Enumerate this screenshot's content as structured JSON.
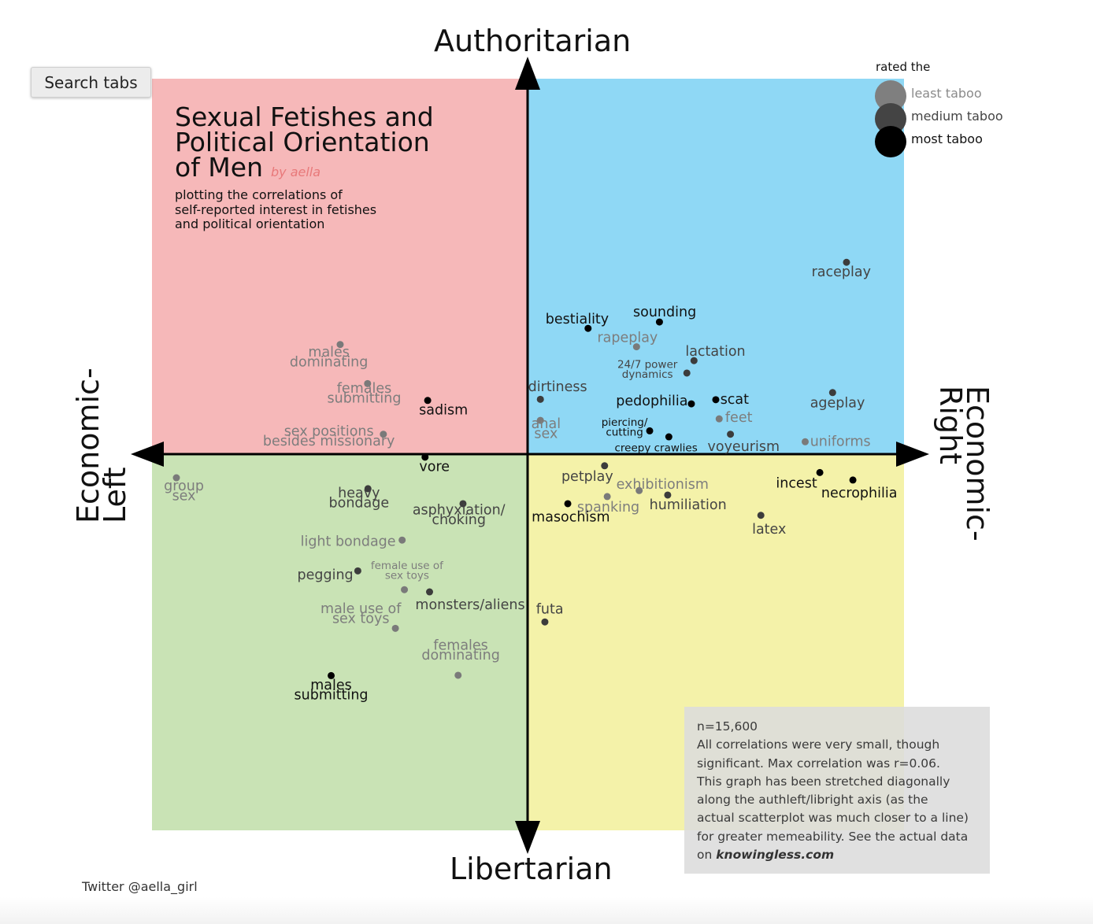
{
  "ui": {
    "search_tabs_label": "Search tabs"
  },
  "chart_data": {
    "type": "scatter",
    "title": "Sexual Fetishes and Political Orientation of Men",
    "byline": "by aella",
    "subtitle_lines": [
      "plotting the correlations of",
      "self-reported interest in fetishes",
      "and political orientation"
    ],
    "title_lines": [
      "Sexual Fetishes and",
      "Political Orientation",
      "of Men"
    ],
    "axis_labels": {
      "top": "Authoritarian",
      "bottom": "Libertarian",
      "left": [
        "Economic-",
        "Left"
      ],
      "right": [
        "Economic-",
        "Right"
      ]
    },
    "quadrant_colors": {
      "auth_left": "#f6b8b9",
      "auth_right": "#8fd8f5",
      "lib_left": "#c9e3b5",
      "lib_right": "#f4f2a9"
    },
    "legend": {
      "title": "rated the",
      "items": [
        {
          "label": "least taboo",
          "color": "#7f7f7f"
        },
        {
          "label": "medium taboo",
          "color": "#444444"
        },
        {
          "label": "most taboo",
          "color": "#000000"
        }
      ]
    },
    "xlim": [
      -1,
      1
    ],
    "ylim": [
      -1,
      1
    ],
    "points": [
      {
        "name": "raceplay",
        "x": 0.849,
        "y": 0.511,
        "taboo": "medium",
        "lines": [
          "raceplay"
        ],
        "lx": 0.835,
        "ly": 0.486,
        "anchor": "middle"
      },
      {
        "name": "sounding",
        "x": 0.351,
        "y": 0.352,
        "taboo": "most",
        "lines": [
          "sounding"
        ],
        "lx": 0.365,
        "ly": 0.379,
        "anchor": "middle"
      },
      {
        "name": "bestiality",
        "x": 0.161,
        "y": 0.335,
        "taboo": "most",
        "lines": [
          "bestiality"
        ],
        "lx": 0.132,
        "ly": 0.361,
        "anchor": "middle"
      },
      {
        "name": "rapeplay",
        "x": 0.29,
        "y": 0.286,
        "taboo": "least",
        "lines": [
          "rapeplay"
        ],
        "lx": 0.266,
        "ly": 0.311,
        "anchor": "middle"
      },
      {
        "name": "lactation",
        "x": 0.443,
        "y": 0.249,
        "taboo": "medium",
        "lines": [
          "lactation"
        ],
        "lx": 0.5,
        "ly": 0.275,
        "anchor": "middle"
      },
      {
        "name": "24/7 power dynamics",
        "x": 0.424,
        "y": 0.216,
        "taboo": "medium",
        "lines": [
          "24/7 power",
          "dynamics"
        ],
        "lx": 0.319,
        "ly": 0.229,
        "anchor": "middle",
        "small": true
      },
      {
        "name": "dirtiness",
        "x": 0.034,
        "y": 0.146,
        "taboo": "medium",
        "lines": [
          "dirtiness"
        ],
        "lx": 0.08,
        "ly": 0.18,
        "anchor": "middle"
      },
      {
        "name": "pedophilia",
        "x": 0.436,
        "y": 0.134,
        "taboo": "most",
        "lines": [
          "pedophilia"
        ],
        "lx": 0.331,
        "ly": 0.143,
        "anchor": "middle"
      },
      {
        "name": "scat",
        "x": 0.501,
        "y": 0.145,
        "taboo": "most",
        "lines": [
          "scat"
        ],
        "lx": 0.513,
        "ly": 0.147,
        "anchor": "start"
      },
      {
        "name": "ageplay",
        "x": 0.812,
        "y": 0.164,
        "taboo": "medium",
        "lines": [
          "ageplay"
        ],
        "lx": 0.825,
        "ly": 0.137,
        "anchor": "middle"
      },
      {
        "name": "feet",
        "x": 0.51,
        "y": 0.094,
        "taboo": "least",
        "lines": [
          "feet"
        ],
        "lx": 0.526,
        "ly": 0.099,
        "anchor": "start"
      },
      {
        "name": "anal sex",
        "x": 0.034,
        "y": 0.09,
        "taboo": "least",
        "lines": [
          "anal",
          "sex"
        ],
        "lx": 0.049,
        "ly": 0.069,
        "anchor": "middle"
      },
      {
        "name": "piercing/cutting",
        "x": 0.325,
        "y": 0.062,
        "taboo": "most",
        "lines": [
          "piercing/",
          "cutting"
        ],
        "lx": 0.258,
        "ly": 0.075,
        "anchor": "middle",
        "small": true
      },
      {
        "name": "creepy crawlies",
        "x": 0.376,
        "y": 0.046,
        "taboo": "most",
        "lines": [
          "creepy crawlies"
        ],
        "lx": 0.342,
        "ly": 0.02,
        "anchor": "middle",
        "small": true
      },
      {
        "name": "voyeurism",
        "x": 0.54,
        "y": 0.053,
        "taboo": "medium",
        "lines": [
          "voyeurism"
        ],
        "lx": 0.575,
        "ly": 0.021,
        "anchor": "middle"
      },
      {
        "name": "uniforms",
        "x": 0.739,
        "y": 0.033,
        "taboo": "least",
        "lines": [
          "uniforms"
        ],
        "lx": 0.752,
        "ly": 0.035,
        "anchor": "start"
      },
      {
        "name": "males dominating",
        "x": -1.0,
        "y": 0.0,
        "taboo": "least",
        "hidden": true,
        "lines": [],
        "lx": 0,
        "ly": 0,
        "anchor": "middle"
      },
      {
        "name": "males dominating",
        "x": -1.0,
        "y": 0.0,
        "taboo": "least",
        "hidden": true,
        "lines": [],
        "lx": 0,
        "ly": 0,
        "anchor": "middle"
      }
    ],
    "points_left": [
      {
        "name": "males dominating",
        "x": -0.499,
        "y": 0.292,
        "taboo": "least",
        "lines": [
          "males",
          "dominating"
        ],
        "lx": -0.529,
        "ly": 0.259,
        "anchor": "middle"
      },
      {
        "name": "females submitting",
        "x": -0.426,
        "y": 0.188,
        "taboo": "least",
        "lines": [
          "females",
          "submitting"
        ],
        "lx": -0.435,
        "ly": 0.163,
        "anchor": "middle"
      },
      {
        "name": "sadism",
        "x": -0.266,
        "y": 0.143,
        "taboo": "most",
        "lines": [
          "sadism"
        ],
        "lx": -0.224,
        "ly": 0.118,
        "anchor": "middle"
      },
      {
        "name": "sex positions besides missionary",
        "x": -0.384,
        "y": 0.053,
        "taboo": "least",
        "lines": [
          "sex positions",
          "besides missionary"
        ],
        "lx": -0.529,
        "ly": 0.049,
        "anchor": "middle"
      },
      {
        "name": "vore",
        "x": -0.273,
        "y": -0.008,
        "taboo": "most",
        "lines": [
          "vore"
        ],
        "lx": -0.248,
        "ly": -0.032,
        "anchor": "middle"
      },
      {
        "name": "group sex",
        "x": -0.935,
        "y": -0.063,
        "taboo": "least",
        "lines": [
          "group",
          "sex"
        ],
        "lx": -0.915,
        "ly": -0.097,
        "anchor": "middle"
      },
      {
        "name": "heavy bondage",
        "x": -0.425,
        "y": -0.092,
        "taboo": "medium",
        "lines": [
          "heavy",
          "bondage"
        ],
        "lx": -0.449,
        "ly": -0.116,
        "anchor": "middle"
      },
      {
        "name": "asphyxiation/choking",
        "x": -0.172,
        "y": -0.132,
        "taboo": "medium",
        "lines": [
          "asphyxiation/",
          "choking"
        ],
        "lx": -0.183,
        "ly": -0.161,
        "anchor": "middle"
      },
      {
        "name": "light bondage",
        "x": -0.334,
        "y": -0.229,
        "taboo": "least",
        "lines": [
          "light bondage"
        ],
        "lx": -0.351,
        "ly": -0.232,
        "anchor": "end"
      },
      {
        "name": "pegging",
        "x": -0.452,
        "y": -0.311,
        "taboo": "medium",
        "lines": [
          "pegging"
        ],
        "lx": -0.464,
        "ly": -0.321,
        "anchor": "end"
      },
      {
        "name": "female use of sex toys",
        "x": -0.328,
        "y": -0.361,
        "taboo": "least",
        "lines": [
          "female use of",
          "sex toys"
        ],
        "lx": -0.321,
        "ly": -0.307,
        "anchor": "middle",
        "small": true
      },
      {
        "name": "monsters/aliens",
        "x": -0.261,
        "y": -0.367,
        "taboo": "medium",
        "lines": [
          "monsters/aliens"
        ],
        "lx": -0.153,
        "ly": -0.4,
        "anchor": "middle"
      },
      {
        "name": "male use of sex toys",
        "x": -0.352,
        "y": -0.464,
        "taboo": "least",
        "lines": [
          "male use of",
          "sex toys"
        ],
        "lx": -0.444,
        "ly": -0.424,
        "anchor": "middle"
      },
      {
        "name": "futa",
        "x": 0.046,
        "y": -0.447,
        "taboo": "medium",
        "lines": [
          "futa"
        ],
        "lx": 0.059,
        "ly": -0.412,
        "anchor": "middle"
      },
      {
        "name": "females dominating",
        "x": -0.185,
        "y": -0.589,
        "taboo": "least",
        "lines": [
          "females",
          "dominating"
        ],
        "lx": -0.178,
        "ly": -0.521,
        "anchor": "middle"
      },
      {
        "name": "males submitting",
        "x": -0.523,
        "y": -0.59,
        "taboo": "most",
        "lines": [
          "males",
          "submitting"
        ],
        "lx": -0.523,
        "ly": -0.627,
        "anchor": "middle"
      }
    ],
    "points_right_low": [
      {
        "name": "petplay",
        "x": 0.205,
        "y": -0.031,
        "taboo": "medium",
        "lines": [
          "petplay"
        ],
        "lx": 0.159,
        "ly": -0.059,
        "anchor": "middle"
      },
      {
        "name": "exhibitionism",
        "x": 0.297,
        "y": -0.097,
        "taboo": "least",
        "lines": [
          "exhibitionism"
        ],
        "lx": 0.359,
        "ly": -0.08,
        "anchor": "middle"
      },
      {
        "name": "spanking",
        "x": 0.212,
        "y": -0.113,
        "taboo": "least",
        "lines": [
          "spanking"
        ],
        "lx": 0.215,
        "ly": -0.14,
        "anchor": "middle"
      },
      {
        "name": "humiliation",
        "x": 0.373,
        "y": -0.109,
        "taboo": "medium",
        "lines": [
          "humiliation"
        ],
        "lx": 0.427,
        "ly": -0.134,
        "anchor": "middle"
      },
      {
        "name": "masochism",
        "x": 0.107,
        "y": -0.132,
        "taboo": "most",
        "lines": [
          "masochism"
        ],
        "lx": 0.115,
        "ly": -0.167,
        "anchor": "middle"
      },
      {
        "name": "incest",
        "x": 0.778,
        "y": -0.049,
        "taboo": "most",
        "lines": [
          "incest"
        ],
        "lx": 0.716,
        "ly": -0.076,
        "anchor": "middle"
      },
      {
        "name": "necrophilia",
        "x": 0.866,
        "y": -0.069,
        "taboo": "most",
        "lines": [
          "necrophilia"
        ],
        "lx": 0.883,
        "ly": -0.103,
        "anchor": "middle"
      },
      {
        "name": "latex",
        "x": 0.621,
        "y": -0.163,
        "taboo": "medium",
        "lines": [
          "latex"
        ],
        "lx": 0.643,
        "ly": -0.199,
        "anchor": "middle"
      }
    ]
  },
  "note": {
    "lines": [
      "n=15,600",
      "All correlations were very small, though",
      "significant. Max correlation was r=0.06.",
      "This graph has been stretched diagonally",
      "along the authleft/libright axis (as the",
      "actual scatterplot was much closer to a line)",
      "for greater memeability. See the actual data"
    ],
    "last_prefix": "on ",
    "last_link": "knowingless.com"
  },
  "credit": "Twitter @aella_girl"
}
